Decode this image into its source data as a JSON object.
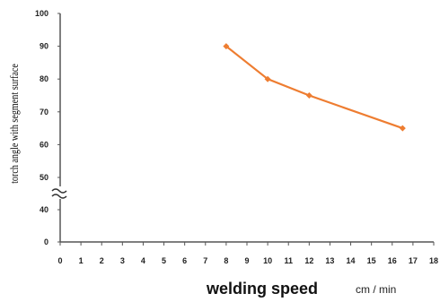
{
  "chart_data": {
    "type": "line",
    "x": [
      8,
      10,
      12,
      16.5
    ],
    "series": [
      {
        "values": [
          90,
          80,
          75,
          65
        ]
      }
    ],
    "xlabel": "welding speed",
    "xlabel_unit": "cm / min",
    "ylabel": "torch angle with segment surface",
    "x_ticks": [
      "0",
      "1",
      "2",
      "3",
      "4",
      "5",
      "6",
      "7",
      "8",
      "9",
      "10",
      "11",
      "12",
      "13",
      "14",
      "15",
      "16",
      "17",
      "18"
    ],
    "y_ticks_upper": [
      "50",
      "60",
      "70",
      "80",
      "90",
      "100"
    ],
    "y_ticks_lower": [
      "0",
      "40"
    ],
    "xlim": [
      0,
      18
    ],
    "ylim": [
      50,
      100
    ],
    "y_axis_break": true,
    "grid": false,
    "line_color": "#ee7d31"
  }
}
